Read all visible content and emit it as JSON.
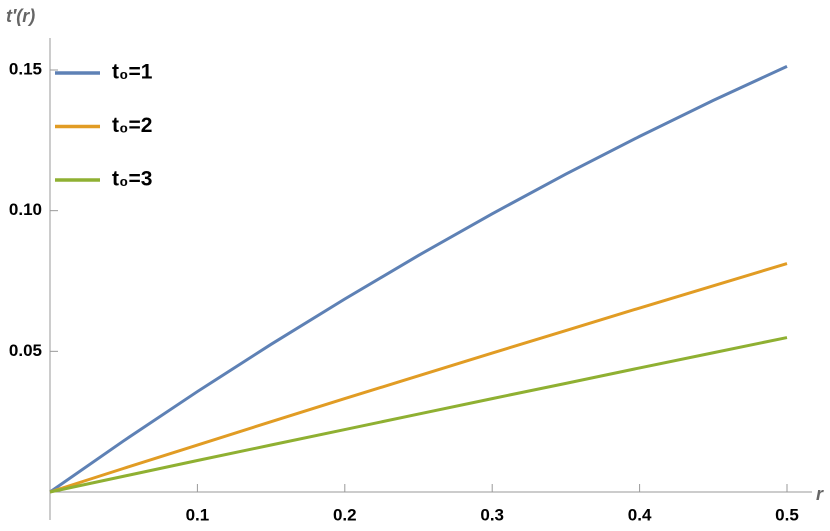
{
  "chart_data": {
    "type": "line",
    "x_label": "r",
    "y_label": "t′(r)",
    "x": [
      0,
      0.05,
      0.1,
      0.15,
      0.2,
      0.25,
      0.3,
      0.35,
      0.4,
      0.45,
      0.5
    ],
    "series": [
      {
        "name": "t₀=1",
        "color": "#5e81b5",
        "values": [
          0,
          0.0182,
          0.0357,
          0.0525,
          0.0686,
          0.0841,
          0.0989,
          0.113,
          0.1264,
          0.1392,
          0.1513
        ]
      },
      {
        "name": "t₀=2",
        "color": "#e19c24",
        "values": [
          0,
          0.0084,
          0.0167,
          0.025,
          0.0332,
          0.0413,
          0.0494,
          0.0574,
          0.0654,
          0.0733,
          0.0812
        ]
      },
      {
        "name": "t₀=3",
        "color": "#8fb032",
        "values": [
          0,
          0.0056,
          0.0112,
          0.0167,
          0.0222,
          0.0277,
          0.0332,
          0.0386,
          0.0441,
          0.0495,
          0.0549
        ]
      }
    ],
    "xlim": [
      0,
      0.5
    ],
    "ylim": [
      0,
      0.15
    ],
    "xticks": [
      0.1,
      0.2,
      0.3,
      0.4,
      0.5
    ],
    "yticks": [
      0.05,
      {
        "value": 0.1,
        "label": "0.10"
      },
      0.15
    ],
    "legend": "top-left"
  }
}
